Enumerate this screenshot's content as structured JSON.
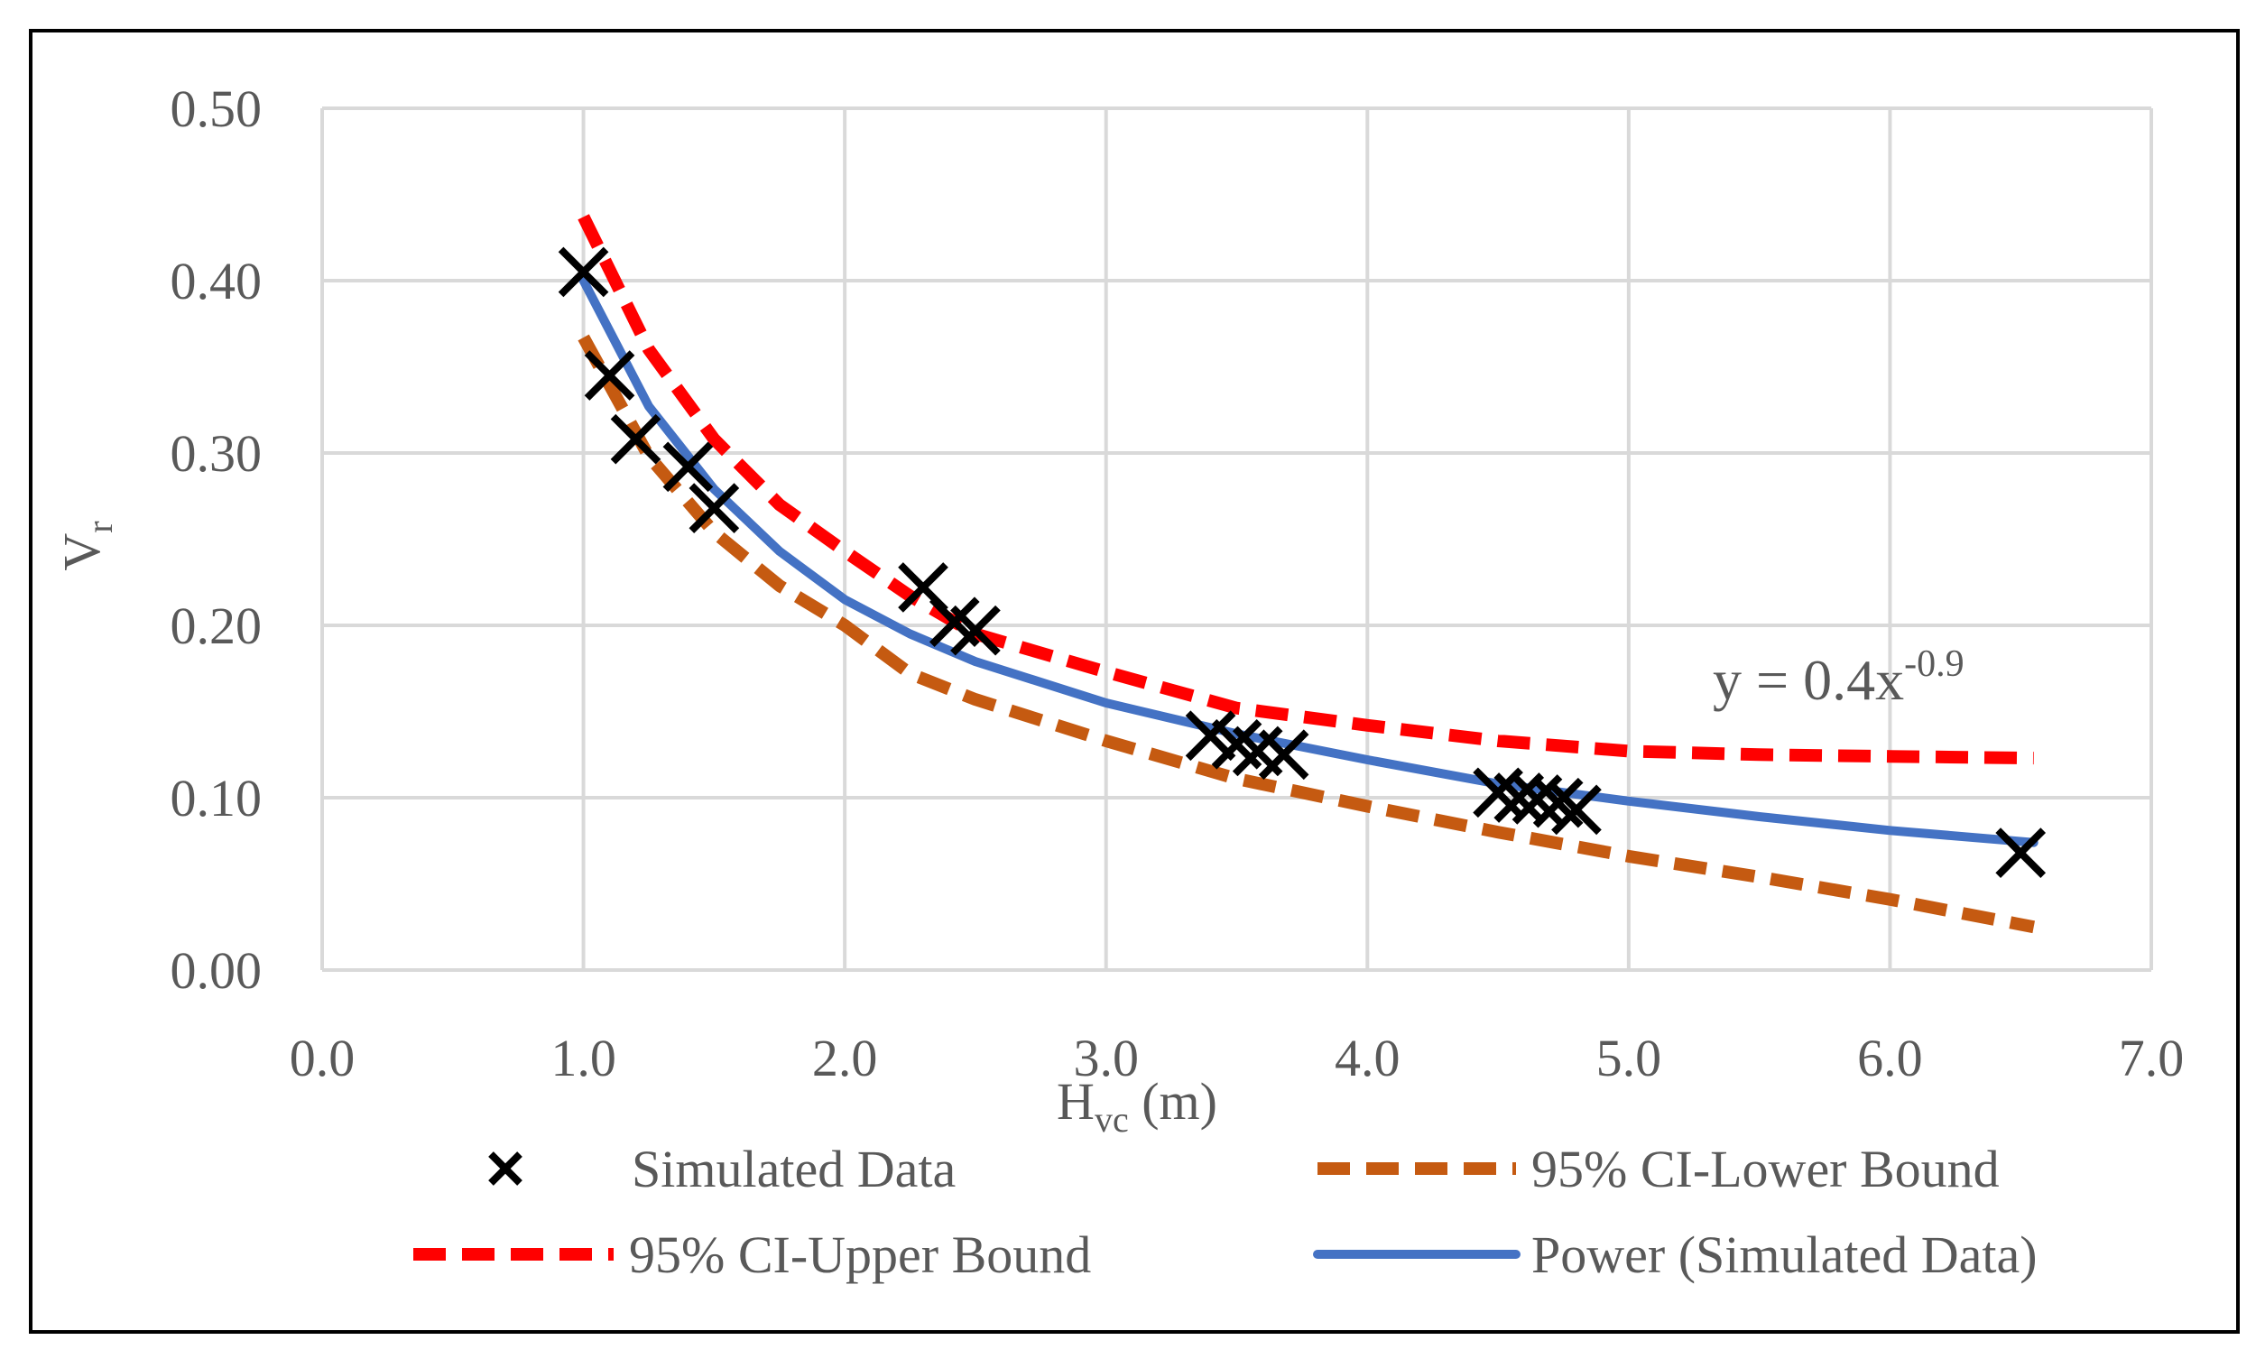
{
  "chart_data": {
    "type": "scatter",
    "xlabel": "H",
    "xlabel_sub": "vc",
    "xlabel_suffix": " (m)",
    "ylabel": "V",
    "ylabel_sub": "r",
    "xlim": [
      0.0,
      7.0
    ],
    "ylim": [
      0.0,
      0.5
    ],
    "xticks": [
      0.0,
      1.0,
      2.0,
      3.0,
      4.0,
      5.0,
      6.0,
      7.0
    ],
    "yticks": [
      0.0,
      0.1,
      0.2,
      0.3,
      0.4,
      0.5
    ],
    "xtick_labels": [
      "0.0",
      "1.0",
      "2.0",
      "3.0",
      "4.0",
      "5.0",
      "6.0",
      "7.0"
    ],
    "ytick_labels": [
      "0.00",
      "0.10",
      "0.20",
      "0.30",
      "0.40",
      "0.50"
    ],
    "grid": true,
    "equation": {
      "prefix": "y = 0.4x",
      "exponent": "-0.9"
    },
    "series": [
      {
        "name": "Simulated Data",
        "kind": "marker-x",
        "color": "#000000",
        "points": [
          [
            1.0,
            0.405
          ],
          [
            1.1,
            0.345
          ],
          [
            1.2,
            0.308
          ],
          [
            1.4,
            0.292
          ],
          [
            1.5,
            0.268
          ],
          [
            2.3,
            0.222
          ],
          [
            2.42,
            0.202
          ],
          [
            2.5,
            0.197
          ],
          [
            3.4,
            0.136
          ],
          [
            3.5,
            0.131
          ],
          [
            3.58,
            0.127
          ],
          [
            3.68,
            0.125
          ],
          [
            4.5,
            0.103
          ],
          [
            4.58,
            0.1
          ],
          [
            4.65,
            0.099
          ],
          [
            4.73,
            0.097
          ],
          [
            4.8,
            0.093
          ],
          [
            6.5,
            0.068
          ]
        ]
      },
      {
        "name": "95% CI-Lower Bound",
        "kind": "dashed-line",
        "color": "#C55A11",
        "points": [
          [
            1.0,
            0.367
          ],
          [
            1.25,
            0.298
          ],
          [
            1.5,
            0.254
          ],
          [
            1.75,
            0.223
          ],
          [
            2.0,
            0.2
          ],
          [
            2.25,
            0.172
          ],
          [
            2.5,
            0.157
          ],
          [
            3.0,
            0.133
          ],
          [
            3.5,
            0.111
          ],
          [
            4.0,
            0.095
          ],
          [
            4.5,
            0.08
          ],
          [
            5.0,
            0.066
          ],
          [
            5.5,
            0.054
          ],
          [
            6.0,
            0.041
          ],
          [
            6.55,
            0.025
          ]
        ]
      },
      {
        "name": "95% CI-Upper Bound",
        "kind": "dashed-line",
        "color": "#FF0000",
        "points": [
          [
            1.0,
            0.437
          ],
          [
            1.25,
            0.36
          ],
          [
            1.5,
            0.308
          ],
          [
            1.75,
            0.27
          ],
          [
            2.0,
            0.243
          ],
          [
            2.25,
            0.217
          ],
          [
            2.5,
            0.195
          ],
          [
            3.0,
            0.173
          ],
          [
            3.5,
            0.152
          ],
          [
            4.0,
            0.142
          ],
          [
            4.5,
            0.133
          ],
          [
            5.0,
            0.127
          ],
          [
            5.5,
            0.125
          ],
          [
            6.0,
            0.124
          ],
          [
            6.55,
            0.123
          ]
        ]
      },
      {
        "name": "Power (Simulated Data)",
        "kind": "solid-line",
        "color": "#4472C4",
        "points": [
          [
            1.0,
            0.4
          ],
          [
            1.25,
            0.327
          ],
          [
            1.5,
            0.279
          ],
          [
            1.75,
            0.243
          ],
          [
            2.0,
            0.215
          ],
          [
            2.25,
            0.195
          ],
          [
            2.5,
            0.179
          ],
          [
            3.0,
            0.155
          ],
          [
            3.5,
            0.137
          ],
          [
            4.0,
            0.122
          ],
          [
            4.5,
            0.108
          ],
          [
            5.0,
            0.098
          ],
          [
            5.5,
            0.089
          ],
          [
            6.0,
            0.081
          ],
          [
            6.55,
            0.074
          ]
        ]
      }
    ],
    "legend": {
      "placement": "bottom",
      "items": [
        {
          "label": "Simulated Data",
          "series": "Simulated Data"
        },
        {
          "label": "95% CI-Lower Bound",
          "series": "95% CI-Lower Bound"
        },
        {
          "label": "95% CI-Upper Bound",
          "series": "95% CI-Upper Bound"
        },
        {
          "label": "Power (Simulated Data)",
          "series": "Power (Simulated Data)"
        }
      ]
    }
  }
}
